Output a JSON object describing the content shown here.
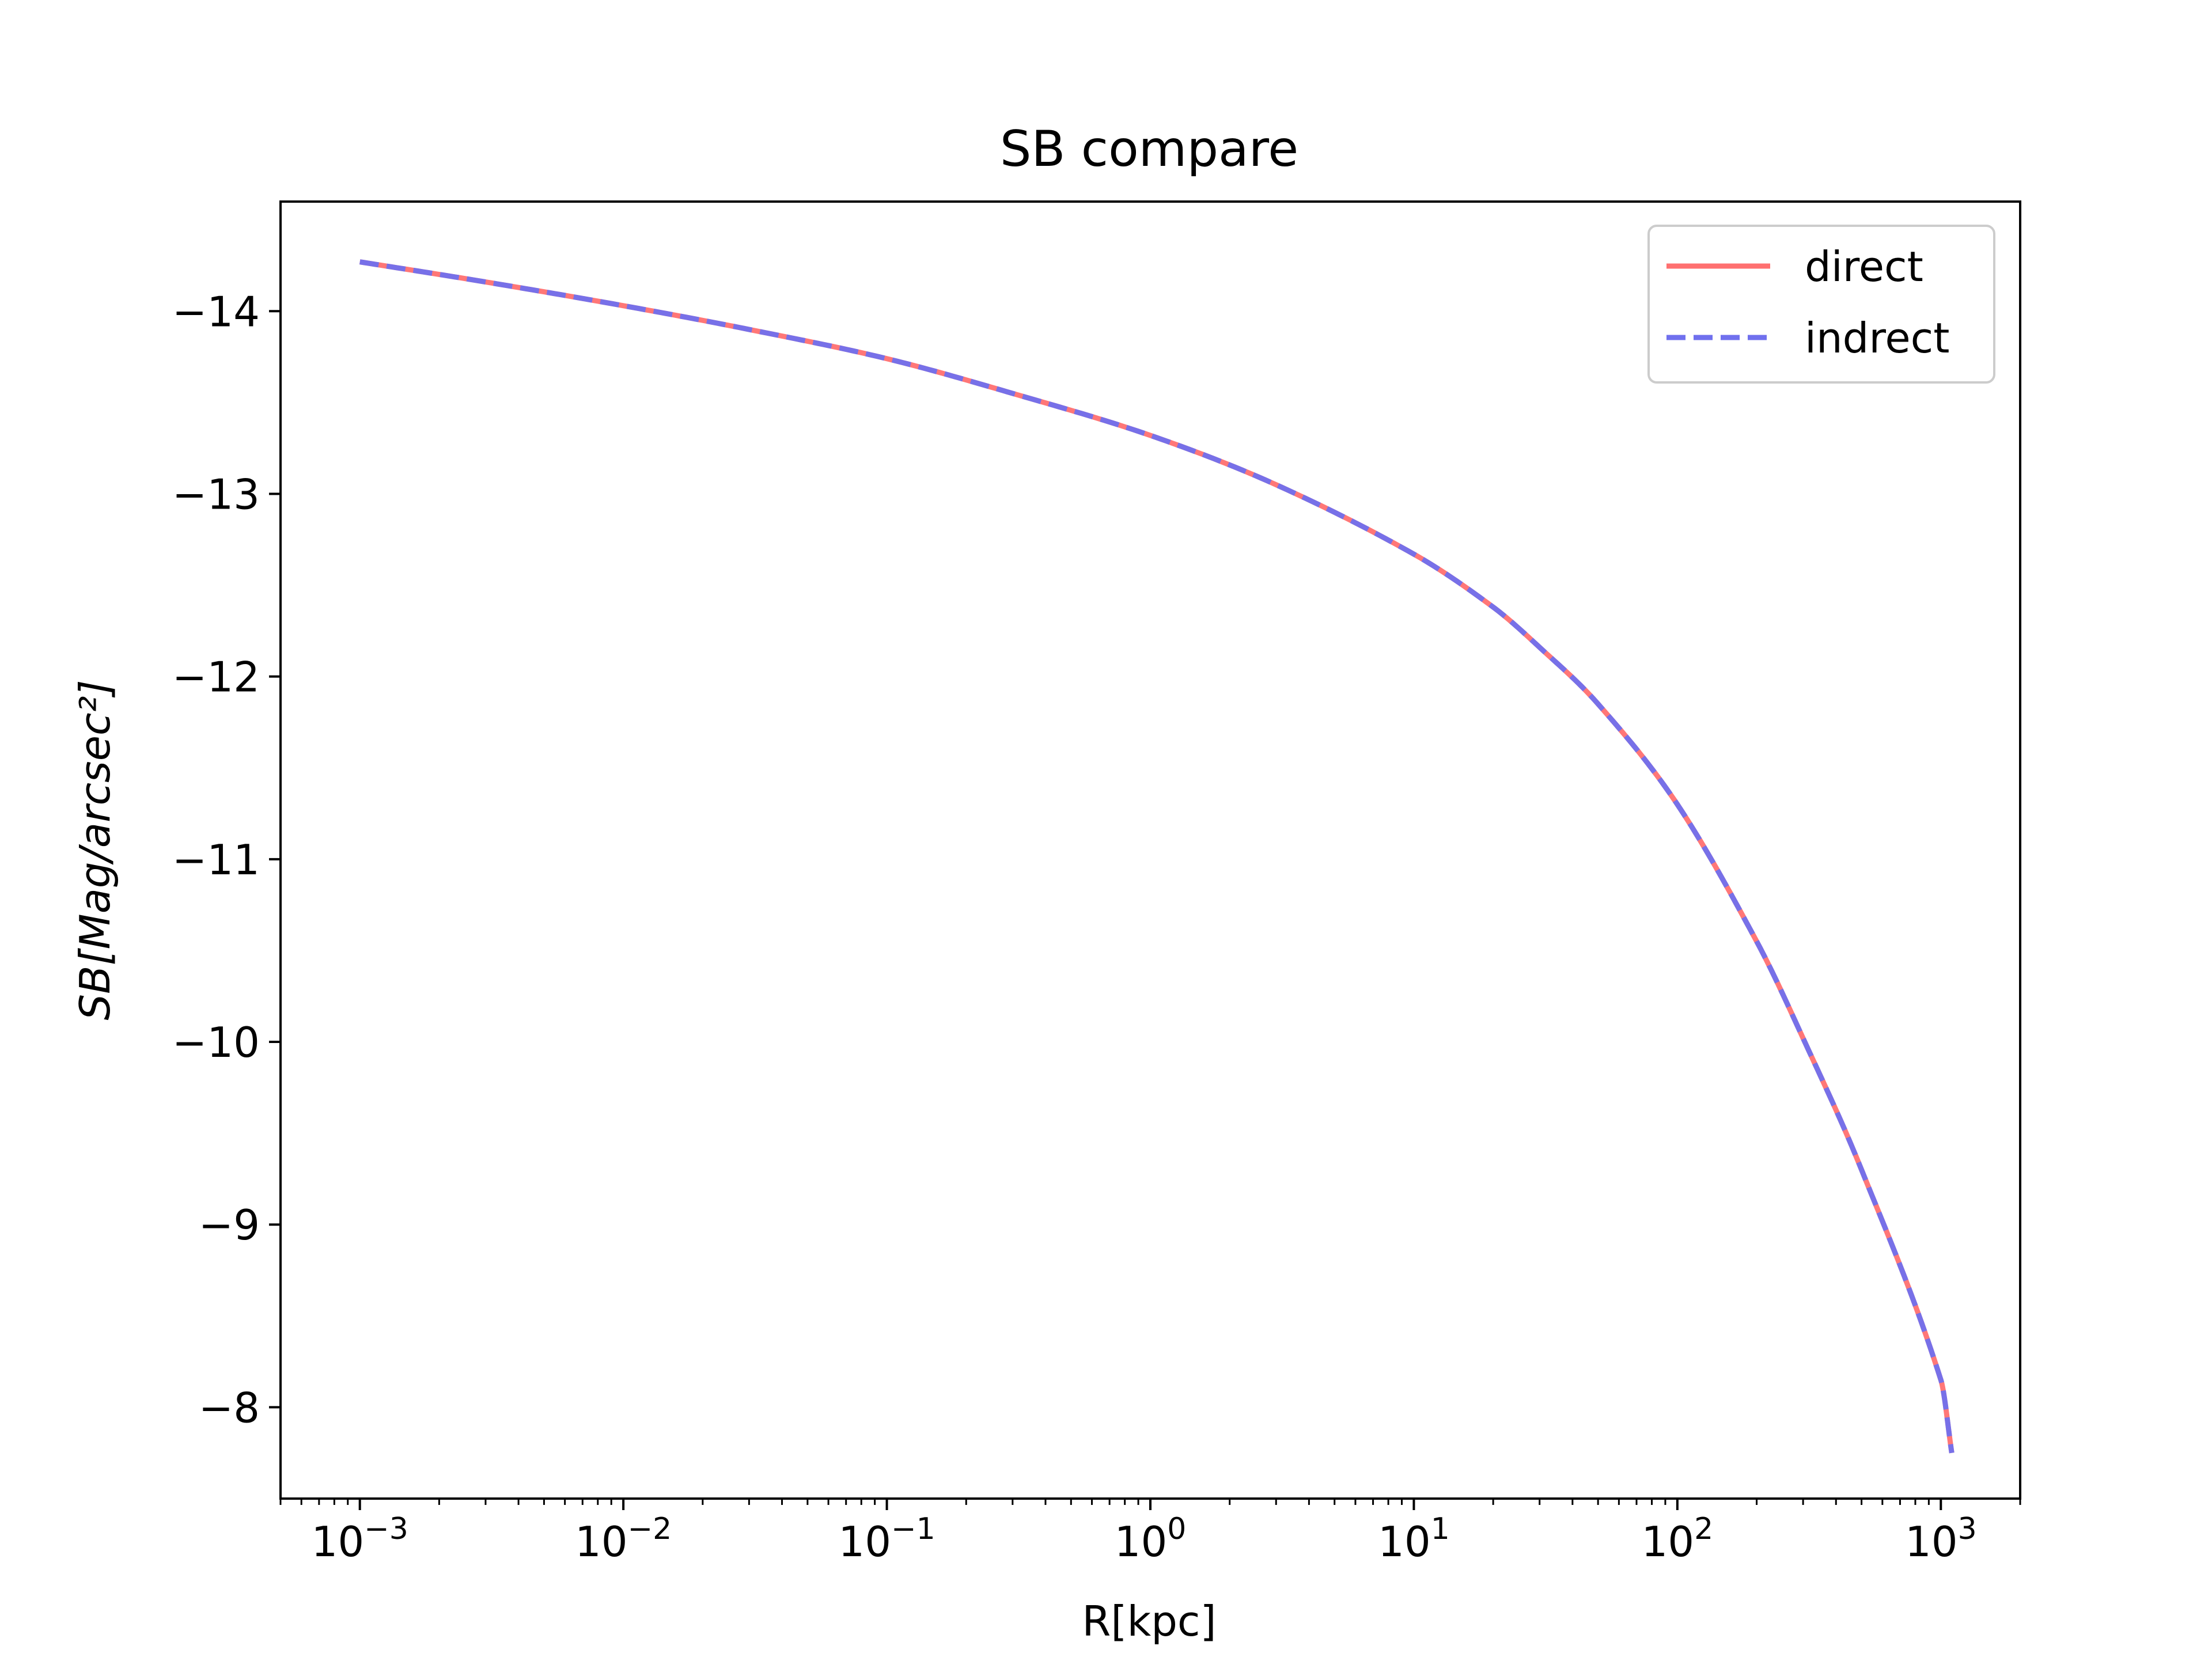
{
  "chart_data": {
    "type": "line",
    "title": "SB compare",
    "xlabel": "R[kpc]",
    "ylabel": "SB[Mag/arcsec²]",
    "xscale": "log",
    "xlim": [
      0.0005,
      2000
    ],
    "ylim": [
      -7.5,
      -14.6
    ],
    "y_inverted": true,
    "grid": false,
    "legend_position": "top-right",
    "x_ticks": [
      0.001,
      0.01,
      0.1,
      1,
      10,
      100,
      1000
    ],
    "x_tick_labels": [
      {
        "base": "10",
        "exp": "−3"
      },
      {
        "base": "10",
        "exp": "−2"
      },
      {
        "base": "10",
        "exp": "−1"
      },
      {
        "base": "10",
        "exp": "0"
      },
      {
        "base": "10",
        "exp": "1"
      },
      {
        "base": "10",
        "exp": "2"
      },
      {
        "base": "10",
        "exp": "3"
      }
    ],
    "y_ticks": [
      -14,
      -13,
      -12,
      -11,
      -10,
      -9,
      -8
    ],
    "y_tick_labels": [
      "−14",
      "−13",
      "−12",
      "−11",
      "−10",
      "−9",
      "−8"
    ],
    "x": [
      0.001,
      0.003,
      0.01,
      0.03,
      0.1,
      0.3,
      1,
      3,
      10,
      20,
      30,
      50,
      100,
      200,
      300,
      500,
      1000,
      1100
    ],
    "series": [
      {
        "name": "direct",
        "color": "#ff7070",
        "style": "solid",
        "values": [
          -14.27,
          -14.16,
          -14.03,
          -13.9,
          -13.74,
          -13.55,
          -13.32,
          -13.05,
          -12.67,
          -12.38,
          -12.16,
          -11.85,
          -11.3,
          -10.55,
          -10.02,
          -9.3,
          -8.15,
          -7.75
        ]
      },
      {
        "name": "indrect",
        "color": "#7070ee",
        "style": "dashed",
        "values": [
          -14.27,
          -14.16,
          -14.03,
          -13.9,
          -13.74,
          -13.55,
          -13.32,
          -13.05,
          -12.67,
          -12.38,
          -12.16,
          -11.85,
          -11.3,
          -10.55,
          -10.02,
          -9.3,
          -8.15,
          -7.75
        ]
      }
    ]
  }
}
